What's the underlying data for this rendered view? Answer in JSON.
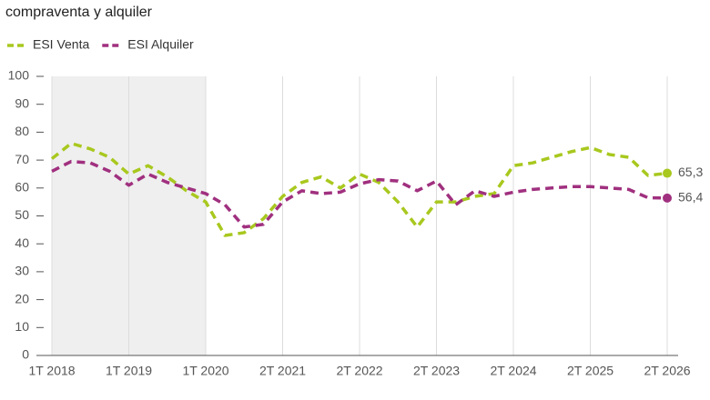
{
  "chart_data": {
    "type": "line",
    "title": "compraventa y alquiler",
    "categories": [
      "1T 2018",
      null,
      null,
      null,
      "1T 2019",
      null,
      null,
      null,
      "1T 2020",
      null,
      null,
      null,
      "2T 2021",
      null,
      null,
      null,
      "2T 2022",
      null,
      null,
      null,
      "2T 2023",
      null,
      null,
      null,
      "2T 2024",
      null,
      null,
      null,
      "2T 2025",
      null,
      null,
      null,
      "2T 2026"
    ],
    "series": [
      {
        "name": "ESI Venta",
        "color": "#a8c81e",
        "last_label": "65,3",
        "values": [
          70.5,
          76,
          74,
          71,
          65,
          68,
          64,
          59,
          55,
          43,
          44,
          49,
          57,
          62,
          64,
          60,
          65,
          62,
          55,
          46,
          55,
          55,
          57,
          58,
          68,
          69,
          71,
          73,
          74.5,
          72,
          71,
          64.5,
          65.3
        ]
      },
      {
        "name": "ESI Alquiler",
        "color": "#a0307f",
        "last_label": "56,4",
        "values": [
          66,
          69.5,
          69,
          66,
          61,
          65,
          62,
          60,
          58,
          54,
          46,
          47,
          55,
          59,
          58,
          58.5,
          61.5,
          63,
          62.5,
          59,
          62.5,
          54,
          59,
          57,
          58.5,
          59.5,
          60,
          60.5,
          60.5,
          60,
          59.5,
          56.5,
          56.4
        ]
      }
    ],
    "ylim": [
      0,
      100
    ],
    "yticks": [
      0,
      10,
      20,
      30,
      40,
      50,
      60,
      70,
      80,
      90,
      100
    ],
    "shaded_range": [
      0,
      8
    ],
    "grid": true
  }
}
